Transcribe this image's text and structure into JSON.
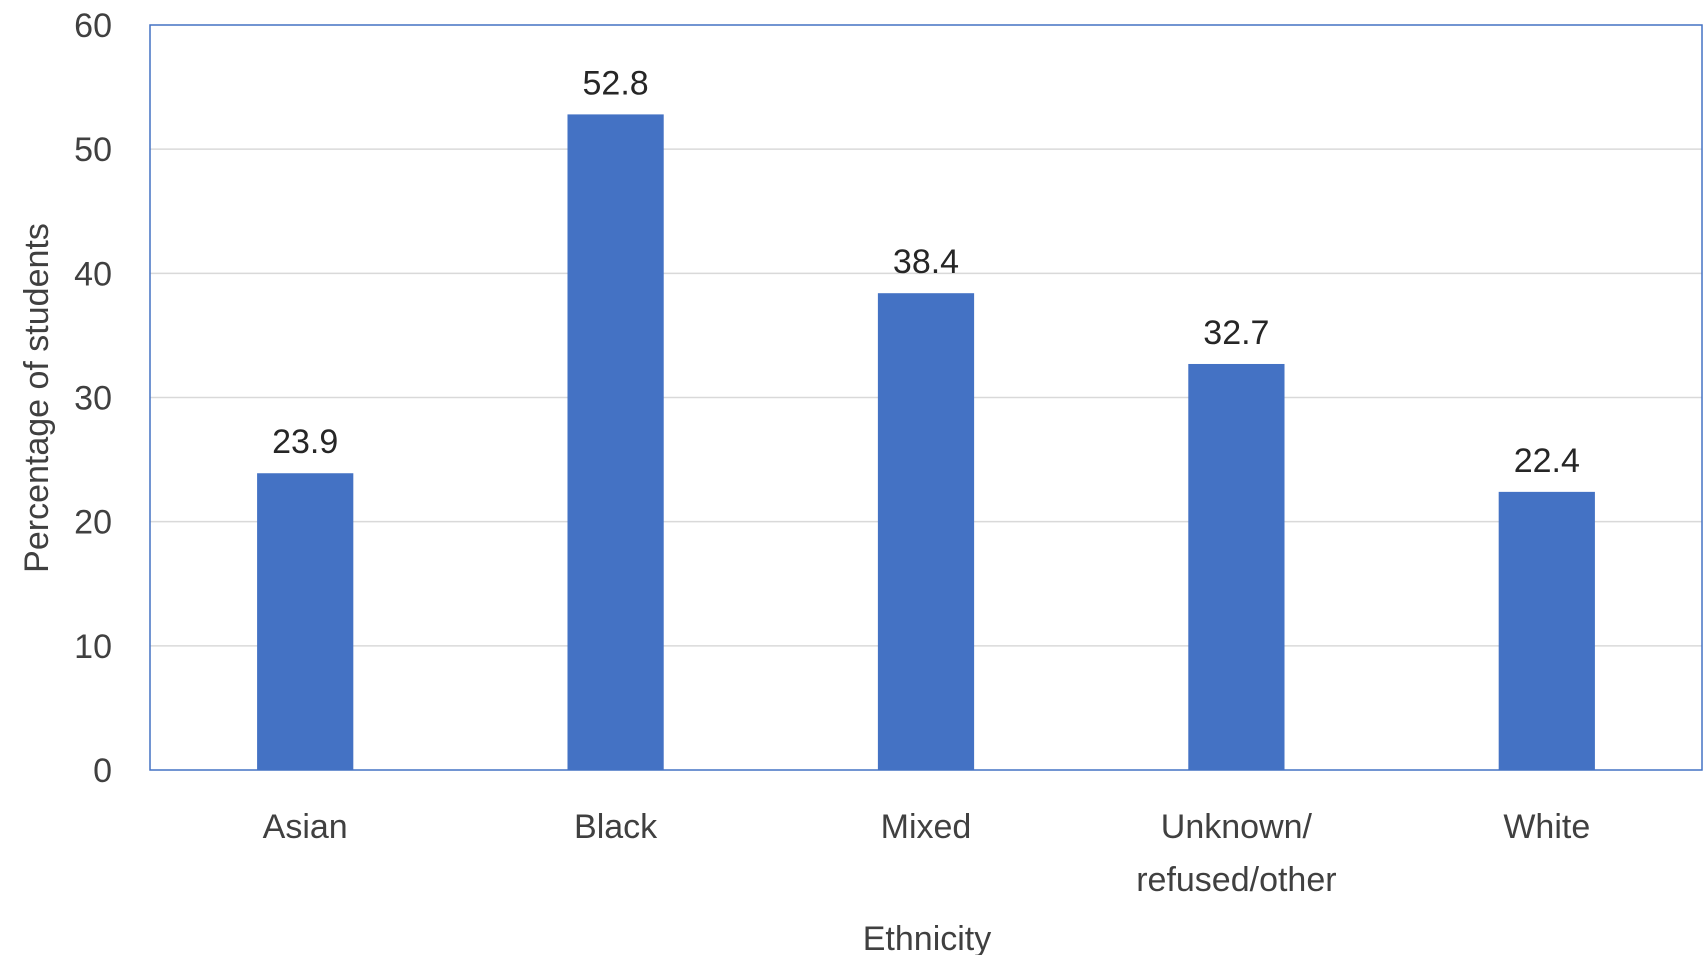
{
  "chart_data": {
    "type": "bar",
    "title": "",
    "xlabel": "Ethnicity",
    "ylabel": "Percentage of students",
    "categories": [
      [
        "Asian"
      ],
      [
        "Black"
      ],
      [
        "Mixed"
      ],
      [
        "Unknown/",
        "refused/other"
      ],
      [
        "White"
      ]
    ],
    "values": [
      23.9,
      52.8,
      38.4,
      32.7,
      22.4
    ],
    "value_labels": [
      "23.9",
      "52.8",
      "38.4",
      "32.7",
      "22.4"
    ],
    "ylim": [
      0,
      60
    ],
    "yticks": [
      0,
      10,
      20,
      30,
      40,
      50,
      60
    ],
    "ytick_labels": [
      "0",
      "10",
      "20",
      "30",
      "40",
      "50",
      "60"
    ],
    "grid": true,
    "legend": "none",
    "colors": {
      "bar": "#4472C4",
      "gridline": "#D9D9D9",
      "plot_border": "#4472C4",
      "text": "#404040"
    }
  }
}
